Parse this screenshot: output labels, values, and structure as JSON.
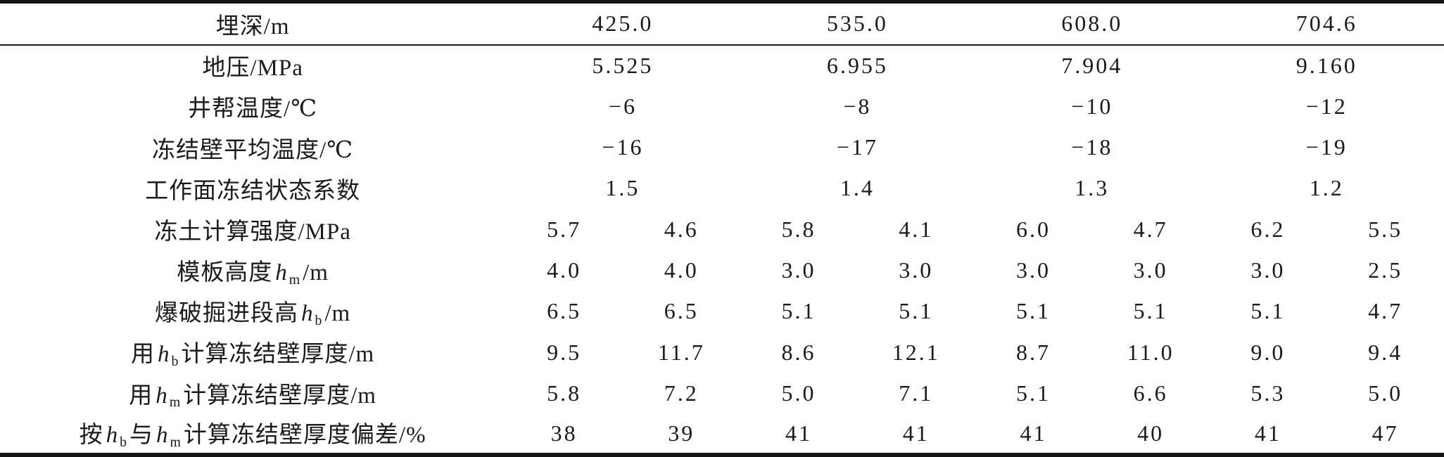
{
  "table": {
    "description_note": "",
    "header": {
      "label": "埋深/m",
      "depths": [
        "425.0",
        "535.0",
        "608.0",
        "704.6"
      ]
    },
    "rows": [
      {
        "label": {
          "pre": "埋深/m"
        },
        "values": [
          "425.0",
          "535.0",
          "608.0",
          "704.6"
        ]
      },
      {
        "label": {
          "pre": "地压/MPa"
        },
        "values": [
          "5.525",
          "6.955",
          "7.904",
          "9.160"
        ]
      },
      {
        "label": {
          "pre": "井帮温度/℃"
        },
        "values": [
          "−6",
          "−8",
          "−10",
          "−12"
        ]
      },
      {
        "label": {
          "pre": "冻结壁平均温度/℃"
        },
        "values": [
          "−16",
          "−17",
          "−18",
          "−19"
        ]
      },
      {
        "label": {
          "pre": "工作面冻结状态系数"
        },
        "values": [
          "1.5",
          "1.4",
          "1.3",
          "1.2"
        ]
      },
      {
        "label": {
          "pre": "冻土计算强度/MPa"
        },
        "values": [
          "5.7",
          "4.6",
          "5.8",
          "4.1",
          "6.0",
          "4.7",
          "6.2",
          "5.5"
        ]
      },
      {
        "label": {
          "pre": "模板高度",
          "var1": "h",
          "sub1": "m",
          "post": "/m"
        },
        "values": [
          "4.0",
          "4.0",
          "3.0",
          "3.0",
          "3.0",
          "3.0",
          "3.0",
          "2.5"
        ]
      },
      {
        "label": {
          "pre": "爆破掘进段高",
          "var1": "h",
          "sub1": "b",
          "post": "/m"
        },
        "values": [
          "6.5",
          "6.5",
          "5.1",
          "5.1",
          "5.1",
          "5.1",
          "5.1",
          "4.7"
        ]
      },
      {
        "label": {
          "pre": "用",
          "var1": "h",
          "sub1": "b",
          "post": "计算冻结壁厚度/m"
        },
        "values": [
          "9.5",
          "11.7",
          "8.6",
          "12.1",
          "8.7",
          "11.0",
          "9.0",
          "9.4"
        ]
      },
      {
        "label": {
          "pre": "用",
          "var1": "h",
          "sub1": "m",
          "post": "计算冻结壁厚度/m"
        },
        "values": [
          "5.8",
          "7.2",
          "5.0",
          "7.1",
          "5.1",
          "6.6",
          "5.3",
          "5.0"
        ]
      },
      {
        "label": {
          "pre": "按",
          "var1": "h",
          "sub1": "b",
          "mid": "与",
          "var2": "h",
          "sub2": "m",
          "post": "计算冻结壁厚度偏差/%"
        },
        "values": [
          "38",
          "39",
          "41",
          "41",
          "41",
          "40",
          "41",
          "47"
        ]
      }
    ],
    "line_color": "#151515"
  }
}
